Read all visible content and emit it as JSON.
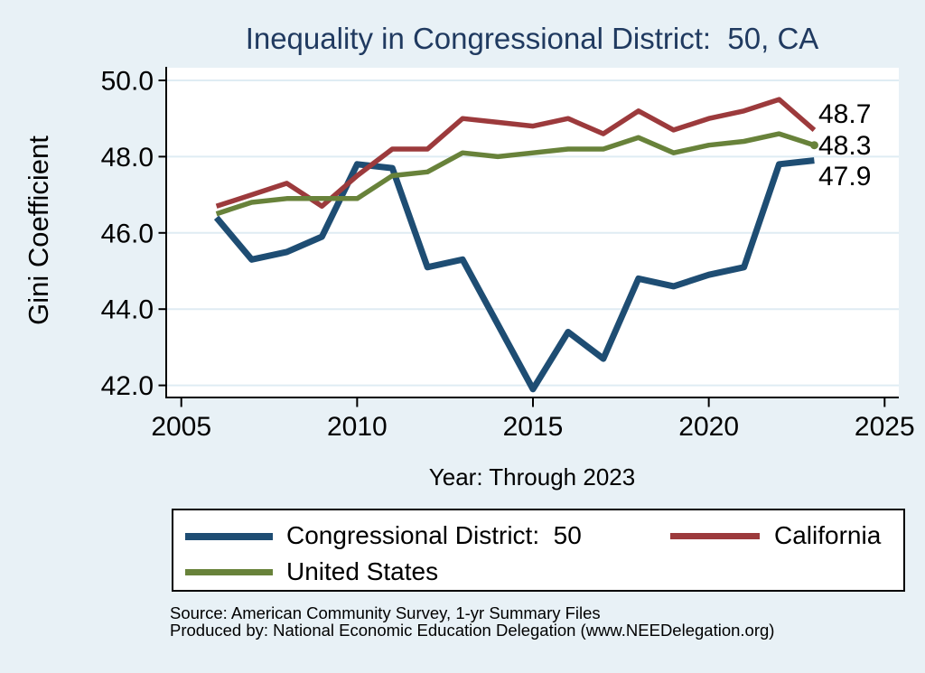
{
  "title": "Inequality in Congressional District:  50, CA",
  "colors": {
    "background": "#E8F1F6",
    "plot_bg": "#FFFFFF",
    "gridline": "#DFECF3",
    "axis": "#000000",
    "title_text": "#203A60",
    "district": "#1E4D73",
    "california": "#9C3A3C",
    "united_states": "#68823A"
  },
  "chart_data": {
    "type": "line",
    "title": "Inequality in Congressional District:  50, CA",
    "xlabel": "Year: Through 2023",
    "ylabel": "Gini Coefficient",
    "grid": true,
    "legend_position": "bottom",
    "xlim": [
      2004.55,
      2025.4
    ],
    "ylim": [
      41.6,
      50.35
    ],
    "x_ticks": [
      2005,
      2010,
      2015,
      2020,
      2025
    ],
    "x_tick_labels": [
      "2005",
      "2010",
      "2015",
      "2020",
      "2025"
    ],
    "y_ticks": [
      50.0,
      48.0,
      46.0,
      44.0,
      42.0
    ],
    "y_tick_labels": [
      "50.0",
      "48.0",
      "46.0",
      "44.0",
      "42.0"
    ],
    "x": [
      2006,
      2007,
      2008,
      2009,
      2010,
      2011,
      2012,
      2013,
      2014,
      2015,
      2016,
      2017,
      2018,
      2019,
      2020,
      2021,
      2022,
      2023
    ],
    "series": [
      {
        "name": "Congressional District:  50",
        "key": "district",
        "line_width": 7,
        "end_marker": false,
        "values": [
          46.4,
          45.3,
          45.5,
          45.9,
          47.8,
          47.7,
          45.1,
          45.3,
          43.6,
          41.9,
          43.4,
          42.7,
          44.8,
          44.6,
          44.9,
          45.1,
          47.8,
          47.9
        ]
      },
      {
        "name": "California",
        "key": "california",
        "line_width": 5.5,
        "end_marker": false,
        "values": [
          46.7,
          47.0,
          47.3,
          46.7,
          47.5,
          48.2,
          48.2,
          49.0,
          48.9,
          48.8,
          49.0,
          48.6,
          49.2,
          48.7,
          49.0,
          49.2,
          49.5,
          48.7
        ]
      },
      {
        "name": "United States",
        "key": "united_states",
        "line_width": 5.5,
        "end_marker": true,
        "values": [
          46.5,
          46.8,
          46.9,
          46.9,
          46.9,
          47.5,
          47.6,
          48.1,
          48.0,
          48.1,
          48.2,
          48.2,
          48.5,
          48.1,
          48.3,
          48.4,
          48.6,
          48.3
        ]
      }
    ],
    "end_labels": [
      "48.7",
      "48.3",
      "47.9"
    ]
  },
  "legend": {
    "items": [
      {
        "label": "Congressional District:  50",
        "key": "district"
      },
      {
        "label": "California",
        "key": "california"
      },
      {
        "label": "United States",
        "key": "united_states"
      }
    ]
  },
  "footer": {
    "source": "Source: American Community Survey, 1-yr Summary Files",
    "produced_by": "Produced by: National Economic Education Delegation (www.NEEDelegation.org)"
  }
}
